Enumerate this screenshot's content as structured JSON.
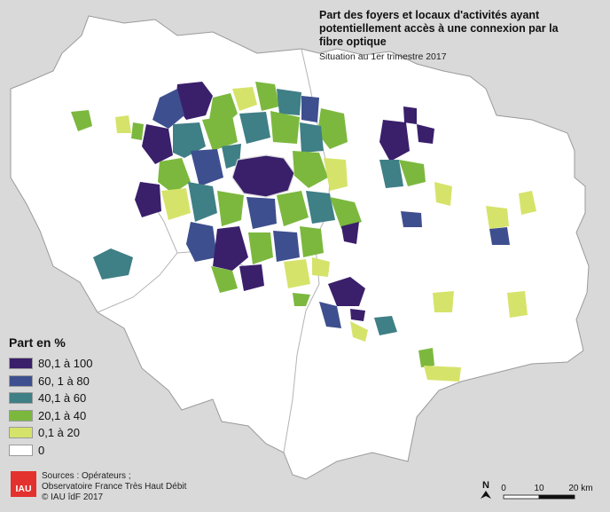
{
  "title": "Part des foyers et locaux d'activités ayant potentiellement accès à une connexion par la fibre optique",
  "subtitle": "Situation au 1er trimestre 2017",
  "legend": {
    "title": "Part en %",
    "items": [
      {
        "label": "80,1 à 100",
        "color": "#3a1f6b"
      },
      {
        "label": "60, 1 à 80",
        "color": "#3d4f8e"
      },
      {
        "label": "40,1 à 60",
        "color": "#3f7f86"
      },
      {
        "label": "20,1 à 40",
        "color": "#7cb83e"
      },
      {
        "label": "0,1 à 20",
        "color": "#d6e36a"
      },
      {
        "label": "0",
        "color": "#ffffff"
      }
    ]
  },
  "sources": {
    "logo_text": "IAU",
    "lines": [
      "Sources : Opérateurs ;",
      "Observatoire France Très Haut Débit",
      "© IAU îdF 2017"
    ]
  },
  "scale": {
    "north_label": "N",
    "tick_labels": [
      "0",
      "10",
      "20 km"
    ]
  }
}
